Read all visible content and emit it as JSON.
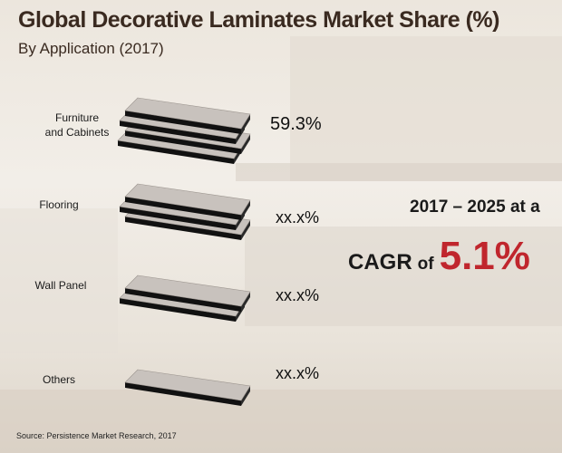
{
  "title": "Global Decorative Laminates Market Share (%)",
  "subtitle": "By Application (2017)",
  "chart_data": {
    "type": "table",
    "title": "Global Decorative Laminates Market Share (%)",
    "subtitle": "By Application (2017)",
    "categories": [
      "Furniture and Cabinets",
      "Flooring",
      "Wall Panel",
      "Others"
    ],
    "value_labels": [
      "59.3%",
      "xx.x%",
      "xx.x%",
      "xx.x%"
    ],
    "values": [
      59.3,
      null,
      null,
      null
    ],
    "boards_per_stack": [
      4,
      3,
      2,
      1
    ],
    "unit": "%"
  },
  "category_lines": {
    "furniture": [
      "Furniture",
      "and Cabinets"
    ],
    "flooring": "Flooring",
    "wall_panel": "Wall Panel",
    "others": "Others"
  },
  "cagr": {
    "line1": "2017 – 2025 at a",
    "word": "CAGR",
    "of": "of",
    "value": "5.1%"
  },
  "source": "Source: Persistence Market Research, 2017",
  "colors": {
    "title": "#3a2a20",
    "accent": "#c0262d",
    "board_top": "#c8c2bd",
    "board_edge": "#111111"
  }
}
